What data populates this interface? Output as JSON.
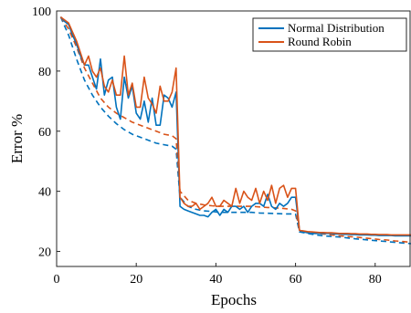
{
  "chart_data": {
    "type": "line",
    "xlabel": "Epochs",
    "ylabel": "Error %",
    "xlim": [
      0,
      89
    ],
    "ylim": [
      15,
      100
    ],
    "xticks": [
      0,
      20,
      40,
      60,
      80
    ],
    "yticks": [
      20,
      40,
      60,
      80,
      100
    ],
    "grid": false,
    "legend_position": "top-right",
    "series": [
      {
        "name": "Normal Distribution",
        "color": "#0072BD",
        "style": "solid",
        "x": [
          1,
          2,
          3,
          4,
          5,
          6,
          7,
          8,
          9,
          10,
          11,
          12,
          13,
          14,
          15,
          16,
          17,
          18,
          19,
          20,
          21,
          22,
          23,
          24,
          25,
          26,
          27,
          28,
          29,
          30,
          31,
          32,
          33,
          34,
          35,
          36,
          37,
          38,
          39,
          40,
          41,
          42,
          43,
          44,
          45,
          46,
          47,
          48,
          49,
          50,
          51,
          52,
          53,
          54,
          55,
          56,
          57,
          58,
          59,
          60,
          61,
          62,
          63,
          64,
          65,
          66,
          67,
          68,
          69,
          70,
          71,
          72,
          73,
          74,
          75,
          76,
          77,
          78,
          79,
          80,
          81,
          82,
          83,
          84,
          85,
          86,
          87,
          88,
          89
        ],
        "values": [
          98,
          96.5,
          95.5,
          92,
          89,
          85,
          82,
          82,
          78,
          74,
          84,
          72,
          77,
          78,
          68,
          64,
          78,
          71,
          75,
          66,
          64,
          70,
          63,
          71,
          62,
          62,
          72,
          71,
          68,
          73,
          35,
          34,
          33.5,
          33,
          32.5,
          32,
          32,
          31.5,
          33,
          34,
          32,
          34,
          33,
          35,
          35,
          34,
          35,
          33,
          35,
          36,
          36,
          35,
          39,
          35,
          34,
          36,
          35,
          36,
          38,
          38,
          27,
          26.5,
          26.2,
          26,
          26,
          26,
          26,
          26,
          26,
          25.8,
          25.8,
          25.7,
          25.7,
          25.6,
          25.6,
          25.5,
          25.5,
          25.5,
          25.4,
          25.4,
          25.3,
          25.3,
          25.3,
          25.3,
          25.2,
          25.2,
          25.2,
          25.2,
          25.2
        ]
      },
      {
        "name": "Round Robin",
        "color": "#D95319",
        "style": "solid",
        "x": [
          1,
          2,
          3,
          4,
          5,
          6,
          7,
          8,
          9,
          10,
          11,
          12,
          13,
          14,
          15,
          16,
          17,
          18,
          19,
          20,
          21,
          22,
          23,
          24,
          25,
          26,
          27,
          28,
          29,
          30,
          31,
          32,
          33,
          34,
          35,
          36,
          37,
          38,
          39,
          40,
          41,
          42,
          43,
          44,
          45,
          46,
          47,
          48,
          49,
          50,
          51,
          52,
          53,
          54,
          55,
          56,
          57,
          58,
          59,
          60,
          61,
          62,
          63,
          64,
          65,
          66,
          67,
          68,
          69,
          70,
          71,
          72,
          73,
          74,
          75,
          76,
          77,
          78,
          79,
          80,
          81,
          82,
          83,
          84,
          85,
          86,
          87,
          88,
          89
        ],
        "values": [
          98,
          97,
          96,
          93,
          90,
          86,
          82,
          85,
          80,
          78,
          81,
          75,
          73,
          77,
          72,
          72,
          85,
          72,
          76,
          68,
          68,
          78,
          71,
          69,
          66,
          75,
          70,
          70,
          73,
          81,
          38,
          36,
          35,
          35,
          36,
          34,
          35,
          36,
          38,
          35,
          35,
          37,
          36,
          35,
          41,
          36,
          40,
          38,
          37,
          41,
          36,
          40,
          37,
          42,
          36,
          41,
          42,
          38,
          41,
          41,
          27,
          26.8,
          26.6,
          26.5,
          26.4,
          26.3,
          26.3,
          26.2,
          26.2,
          26.1,
          26,
          26,
          26,
          25.9,
          25.9,
          25.8,
          25.8,
          25.8,
          25.7,
          25.7,
          25.6,
          25.6,
          25.6,
          25.5,
          25.5,
          25.5,
          25.5,
          25.5,
          25.5
        ]
      },
      {
        "color": "#0072BD",
        "style": "dashed",
        "x": [
          1,
          3,
          5,
          7,
          9,
          11,
          13,
          15,
          17,
          19,
          21,
          23,
          25,
          27,
          29,
          30,
          31,
          33,
          35,
          37,
          39,
          41,
          43,
          45,
          47,
          49,
          51,
          53,
          55,
          57,
          59,
          60,
          61,
          63,
          65,
          67,
          69,
          71,
          73,
          75,
          77,
          79,
          81,
          83,
          85,
          87,
          89
        ],
        "values": [
          98,
          92,
          84,
          77,
          72,
          68,
          65,
          62.5,
          60.5,
          59,
          58,
          57,
          56,
          55.5,
          55,
          54,
          38,
          35,
          34,
          33.5,
          33.3,
          33,
          33,
          33,
          33,
          33,
          32.8,
          32.7,
          32.6,
          32.5,
          32.5,
          32.4,
          26.5,
          26,
          25.5,
          25.2,
          25,
          24.8,
          24.5,
          24.2,
          24,
          23.7,
          23.5,
          23.3,
          23,
          22.8,
          22.6
        ]
      },
      {
        "color": "#D95319",
        "style": "dashed",
        "x": [
          1,
          3,
          5,
          7,
          9,
          11,
          13,
          15,
          17,
          19,
          21,
          23,
          25,
          27,
          29,
          30,
          31,
          33,
          35,
          37,
          39,
          41,
          43,
          45,
          47,
          49,
          51,
          53,
          55,
          57,
          59,
          60,
          61,
          63,
          65,
          67,
          69,
          71,
          73,
          75,
          77,
          79,
          81,
          83,
          85,
          87,
          89
        ],
        "values": [
          98,
          94,
          88,
          81,
          76,
          71,
          68,
          66,
          64.5,
          63,
          62,
          61,
          60,
          59,
          58.5,
          57.5,
          40,
          37,
          36,
          35.5,
          35.2,
          35,
          35,
          35,
          35,
          35,
          34.8,
          34.6,
          34.5,
          34.3,
          34,
          33.5,
          27,
          26.5,
          26,
          25.8,
          25.5,
          25.2,
          25,
          24.8,
          24.5,
          24.3,
          24,
          23.8,
          23.5,
          23.3,
          23
        ]
      }
    ]
  }
}
